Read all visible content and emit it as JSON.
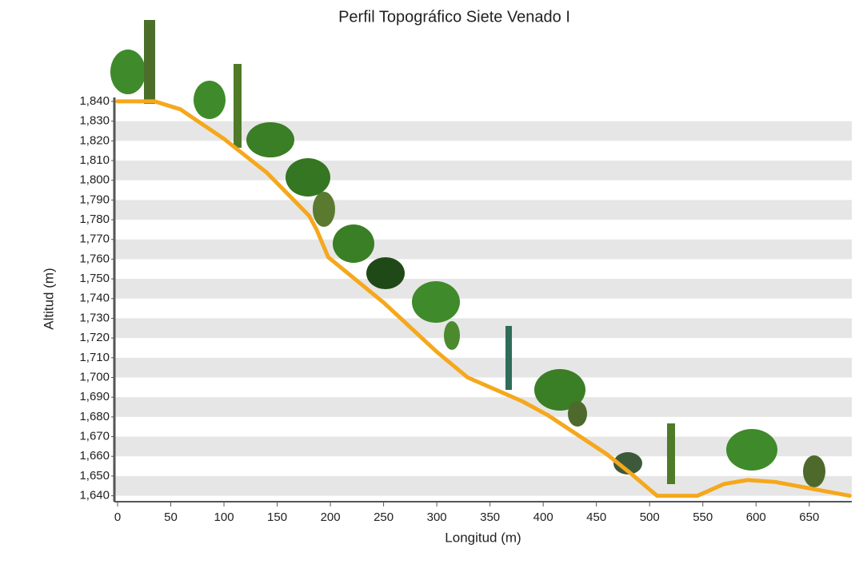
{
  "chart_data": {
    "type": "line",
    "title": "Perfil Topográfico Siete Venado I",
    "x_label": "Longitud (m)",
    "y_label": "Altitud (m)",
    "x": [
      0,
      35,
      59,
      100,
      140,
      180,
      187,
      198,
      250,
      300,
      329,
      380,
      404,
      460,
      483,
      507,
      545,
      570,
      592,
      618,
      648,
      688
    ],
    "series": [
      {
        "color": "#f5a81c",
        "values": [
          1840,
          1840,
          1836,
          1821,
          1804,
          1782,
          1775,
          1761,
          1738,
          1713,
          1700,
          1688,
          1681,
          1661,
          1651,
          1640,
          1640,
          1646,
          1648,
          1647,
          1644,
          1640
        ]
      }
    ],
    "xlim": [
      -3,
      690
    ],
    "ylim": [
      1637,
      1842
    ],
    "xticks": [
      0,
      50,
      100,
      150,
      200,
      250,
      300,
      350,
      400,
      450,
      500,
      550,
      600,
      650
    ],
    "yticks": [
      {
        "value": 1640,
        "label": "1,640"
      },
      {
        "value": 1650,
        "label": "1,650"
      },
      {
        "value": 1660,
        "label": "1,660"
      },
      {
        "value": 1670,
        "label": "1,670"
      },
      {
        "value": 1680,
        "label": "1,680"
      },
      {
        "value": 1690,
        "label": "1,690"
      },
      {
        "value": 1700,
        "label": "1,700"
      },
      {
        "value": 1710,
        "label": "1,710"
      },
      {
        "value": 1720,
        "label": "1,720"
      },
      {
        "value": 1730,
        "label": "1,730"
      },
      {
        "value": 1740,
        "label": "1,740"
      },
      {
        "value": 1750,
        "label": "1,750"
      },
      {
        "value": 1760,
        "label": "1,760"
      },
      {
        "value": 1770,
        "label": "1,770"
      },
      {
        "value": 1780,
        "label": "1,780"
      },
      {
        "value": 1790,
        "label": "1,790"
      },
      {
        "value": 1800,
        "label": "1,800"
      },
      {
        "value": 1810,
        "label": "1,810"
      },
      {
        "value": 1820,
        "label": "1,820"
      },
      {
        "value": 1830,
        "label": "1,830"
      },
      {
        "value": 1840,
        "label": "1,840"
      }
    ],
    "grid": "bands",
    "band_color": "#e6e6e6"
  }
}
